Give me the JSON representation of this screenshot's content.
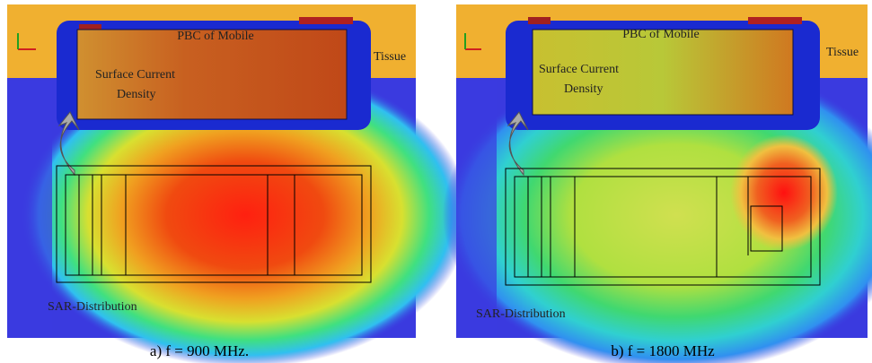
{
  "panels": [
    {
      "pbc": "PBC of Mobile",
      "tissue": "Tissue",
      "current": [
        "Surface Current",
        "Density"
      ],
      "sar": "SAR-Distribution",
      "caption": "a) f = 900 MHz."
    },
    {
      "pbc": "PBC of Mobile",
      "tissue": "Tissue",
      "current": [
        "Surface Current",
        "Density"
      ],
      "sar": "SAR-Distribution",
      "caption": "b) f = 1800 MHz"
    }
  ]
}
